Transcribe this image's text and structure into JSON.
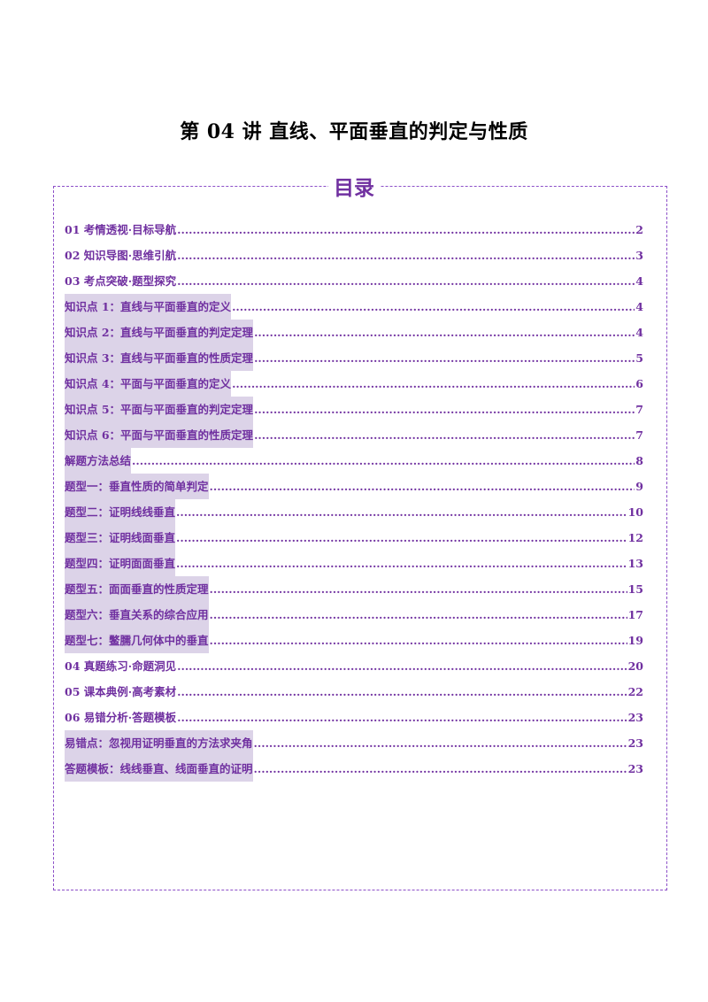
{
  "document": {
    "title": "第 04 讲  直线、平面垂直的判定与性质",
    "toc_heading": "目录"
  },
  "toc": [
    {
      "label": "01 考情透视·目标导航",
      "page": "2",
      "highlight": false
    },
    {
      "label": "02 知识导图·思维引航",
      "page": "3",
      "highlight": false
    },
    {
      "label": "03 考点突破·题型探究",
      "page": "4",
      "highlight": false
    },
    {
      "label": "知识点 1：直线与平面垂直的定义",
      "page": "4",
      "highlight": true
    },
    {
      "label": "知识点 2：直线与平面垂直的判定定理",
      "page": "4",
      "highlight": true
    },
    {
      "label": "知识点 3：直线与平面垂直的性质定理",
      "page": "5",
      "highlight": true
    },
    {
      "label": "知识点 4：平面与平面垂直的定义",
      "page": "6",
      "highlight": true
    },
    {
      "label": "知识点 5：平面与平面垂直的判定定理",
      "page": "7",
      "highlight": true
    },
    {
      "label": "知识点 6：平面与平面垂直的性质定理",
      "page": "7",
      "highlight": true
    },
    {
      "label": "解题方法总结",
      "page": "8",
      "highlight": true
    },
    {
      "label": "题型一：垂直性质的简单判定",
      "page": "9",
      "highlight": true
    },
    {
      "label": "题型二：证明线线垂直",
      "page": "10",
      "highlight": true
    },
    {
      "label": "题型三：证明线面垂直",
      "page": "12",
      "highlight": true
    },
    {
      "label": "题型四：证明面面垂直",
      "page": "13",
      "highlight": true
    },
    {
      "label": "题型五：面面垂直的性质定理",
      "page": "15",
      "highlight": true
    },
    {
      "label": "题型六：垂直关系的综合应用",
      "page": "17",
      "highlight": true
    },
    {
      "label": "题型七：鳖臑几何体中的垂直",
      "page": "19",
      "highlight": true
    },
    {
      "label": "04 真题练习·命题洞见",
      "page": "20",
      "highlight": false
    },
    {
      "label": "05 课本典例·高考素材",
      "page": "22",
      "highlight": false
    },
    {
      "label": "06 易错分析·答题模板",
      "page": "23",
      "highlight": false
    },
    {
      "label": "易错点：忽视用证明垂直的方法求夹角",
      "page": "23",
      "highlight": true
    },
    {
      "label": "答题模板：线线垂直、线面垂直的证明",
      "page": "23",
      "highlight": true
    }
  ]
}
